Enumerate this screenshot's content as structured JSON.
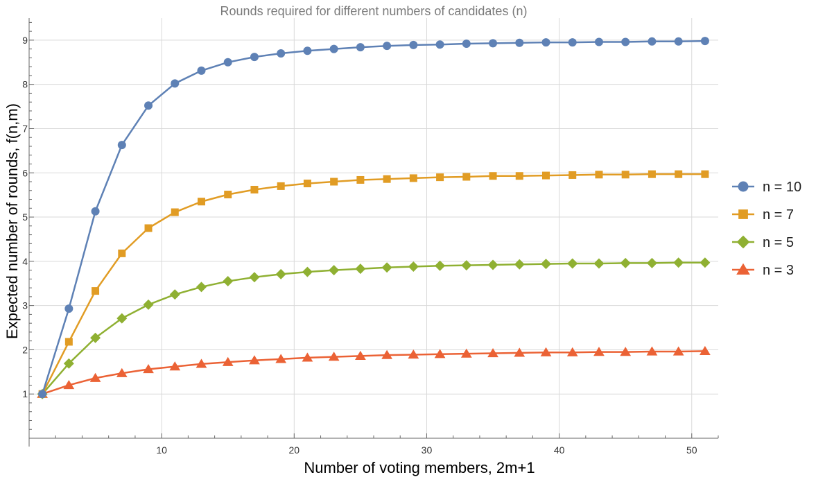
{
  "chart_data": {
    "type": "line",
    "title": "Rounds required for different numbers of candidates (n)",
    "xlabel": "Number of voting members, 2m+1",
    "ylabel": "Expected number of rounds, f(n,m)",
    "xlim": [
      0,
      52
    ],
    "ylim": [
      0,
      9.5
    ],
    "xticks": [
      10,
      20,
      30,
      40,
      50
    ],
    "yticks": [
      1,
      2,
      3,
      4,
      5,
      6,
      7,
      8,
      9
    ],
    "grid": true,
    "legend_position": "right",
    "x": [
      1,
      3,
      5,
      7,
      9,
      11,
      13,
      15,
      17,
      19,
      21,
      23,
      25,
      27,
      29,
      31,
      33,
      35,
      37,
      39,
      41,
      43,
      45,
      47,
      49,
      51
    ],
    "series": [
      {
        "name": "n = 10",
        "color": "#5e81b5",
        "marker": "circle",
        "values": [
          1,
          2.93,
          5.13,
          6.63,
          7.52,
          8.02,
          8.31,
          8.5,
          8.62,
          8.7,
          8.76,
          8.8,
          8.84,
          8.87,
          8.89,
          8.9,
          8.92,
          8.93,
          8.94,
          8.95,
          8.95,
          8.96,
          8.96,
          8.97,
          8.97,
          8.98
        ]
      },
      {
        "name": "n = 7",
        "color": "#e19c24",
        "marker": "square",
        "values": [
          1,
          2.18,
          3.33,
          4.18,
          4.75,
          5.11,
          5.35,
          5.51,
          5.62,
          5.7,
          5.76,
          5.8,
          5.84,
          5.86,
          5.88,
          5.9,
          5.91,
          5.93,
          5.93,
          5.94,
          5.95,
          5.96,
          5.96,
          5.97,
          5.97,
          5.97
        ]
      },
      {
        "name": "n = 5",
        "color": "#8fb032",
        "marker": "diamond",
        "values": [
          1,
          1.69,
          2.27,
          2.71,
          3.02,
          3.25,
          3.42,
          3.55,
          3.64,
          3.71,
          3.76,
          3.8,
          3.83,
          3.86,
          3.88,
          3.9,
          3.91,
          3.92,
          3.93,
          3.94,
          3.95,
          3.95,
          3.96,
          3.96,
          3.97,
          3.97
        ]
      },
      {
        "name": "n = 3",
        "color": "#eb6235",
        "marker": "triangle",
        "values": [
          1,
          1.2,
          1.36,
          1.47,
          1.56,
          1.62,
          1.68,
          1.72,
          1.76,
          1.79,
          1.82,
          1.84,
          1.86,
          1.88,
          1.89,
          1.9,
          1.91,
          1.92,
          1.93,
          1.94,
          1.94,
          1.95,
          1.95,
          1.96,
          1.96,
          1.97
        ]
      }
    ]
  }
}
